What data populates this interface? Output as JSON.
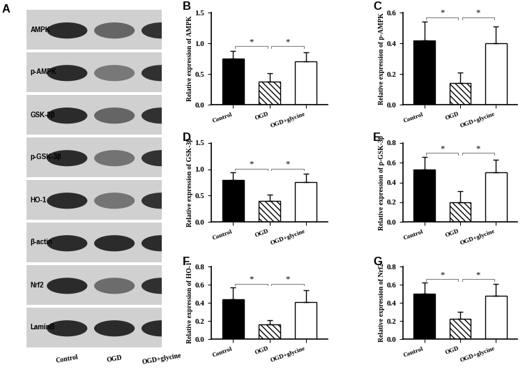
{
  "blot": {
    "label": "A",
    "rows": [
      "AMPK",
      "p-AMPK",
      "GSK-3β",
      "p-GSK-3β",
      "HO-1",
      "β-actin",
      "Nrf2",
      "LaminB"
    ],
    "lanes": [
      "Control",
      "OGD",
      "OGD+glycine"
    ]
  },
  "chart_data": [
    {
      "type": "bar",
      "label": "B",
      "ylabel": "Relative expression of AMPK",
      "categories": [
        "Control",
        "OGD",
        "OGD+glycine"
      ],
      "values": [
        0.75,
        0.37,
        0.7
      ],
      "errors": [
        0.13,
        0.14,
        0.15
      ],
      "colors": [
        "#000000",
        "#ffffff",
        "#ffffff"
      ],
      "ylim": [
        0,
        1.5
      ],
      "yticks": [
        {
          "value": 0,
          "label": "0.0"
        },
        {
          "value": 0.5,
          "label": "0.5"
        },
        {
          "value": 1,
          "label": "1.0"
        },
        {
          "value": 1.5,
          "label": "1.5"
        }
      ],
      "significance": [
        {
          "pair": [
            0,
            1
          ],
          "label": "*"
        },
        {
          "pair": [
            1,
            2
          ],
          "label": "*"
        }
      ]
    },
    {
      "type": "bar",
      "label": "C",
      "ylabel": "Relative expression of p-AMPK",
      "categories": [
        "Control",
        "OGD",
        "OGD+glycine"
      ],
      "values": [
        0.42,
        0.14,
        0.4
      ],
      "errors": [
        0.12,
        0.07,
        0.11
      ],
      "colors": [
        "#000000",
        "#ffffff",
        "#ffffff"
      ],
      "ylim": [
        0,
        0.6
      ],
      "yticks": [
        {
          "value": 0,
          "label": "0.0"
        },
        {
          "value": 0.2,
          "label": "0.2"
        },
        {
          "value": 0.4,
          "label": "0.4"
        },
        {
          "value": 0.6,
          "label": "0.6"
        }
      ],
      "significance": [
        {
          "pair": [
            0,
            1
          ],
          "label": "*"
        },
        {
          "pair": [
            1,
            2
          ],
          "label": "*"
        }
      ]
    },
    {
      "type": "bar",
      "label": "D",
      "ylabel": "Relative expression of GSK-3β",
      "categories": [
        "Control",
        "OGD",
        "OGD+glycine"
      ],
      "values": [
        0.8,
        0.4,
        0.76
      ],
      "errors": [
        0.14,
        0.12,
        0.15
      ],
      "colors": [
        "#000000",
        "#ffffff",
        "#ffffff"
      ],
      "ylim": [
        0,
        1.5
      ],
      "yticks": [
        {
          "value": 0,
          "label": "0.0"
        },
        {
          "value": 0.5,
          "label": "0.5"
        },
        {
          "value": 1,
          "label": "1.0"
        },
        {
          "value": 1.5,
          "label": "1.5"
        }
      ],
      "significance": [
        {
          "pair": [
            0,
            1
          ],
          "label": "*"
        },
        {
          "pair": [
            1,
            2
          ],
          "label": "*"
        }
      ]
    },
    {
      "type": "bar",
      "label": "E",
      "ylabel": "Relative expression of p-GSK-3β",
      "categories": [
        "Control",
        "OGD",
        "OGD+glycine"
      ],
      "values": [
        0.53,
        0.2,
        0.5
      ],
      "errors": [
        0.13,
        0.11,
        0.13
      ],
      "colors": [
        "#000000",
        "#ffffff",
        "#ffffff"
      ],
      "ylim": [
        0,
        0.8
      ],
      "yticks": [
        {
          "value": 0,
          "label": "0.0"
        },
        {
          "value": 0.2,
          "label": "0.2"
        },
        {
          "value": 0.4,
          "label": "0.4"
        },
        {
          "value": 0.6,
          "label": "0.6"
        },
        {
          "value": 0.8,
          "label": "0.8"
        }
      ],
      "significance": [
        {
          "pair": [
            0,
            1
          ],
          "label": "*"
        },
        {
          "pair": [
            1,
            2
          ],
          "label": "*"
        }
      ]
    },
    {
      "type": "bar",
      "label": "F",
      "ylabel": "Relative expression of HO-1",
      "categories": [
        "Control",
        "OGD",
        "OGD+glycine"
      ],
      "values": [
        0.44,
        0.16,
        0.41
      ],
      "errors": [
        0.13,
        0.05,
        0.13
      ],
      "colors": [
        "#000000",
        "#ffffff",
        "#ffffff"
      ],
      "ylim": [
        0,
        0.8
      ],
      "yticks": [
        {
          "value": 0,
          "label": "0.0"
        },
        {
          "value": 0.2,
          "label": "0.2"
        },
        {
          "value": 0.4,
          "label": "0.4"
        },
        {
          "value": 0.6,
          "label": "0.6"
        },
        {
          "value": 0.8,
          "label": "0.8"
        }
      ],
      "significance": [
        {
          "pair": [
            0,
            1
          ],
          "label": "*"
        },
        {
          "pair": [
            1,
            2
          ],
          "label": "*"
        }
      ]
    },
    {
      "type": "bar",
      "label": "G",
      "ylabel": "Relative expression of Nrf2",
      "categories": [
        "Control",
        "OGD",
        "OGD+glycine"
      ],
      "values": [
        0.5,
        0.22,
        0.48
      ],
      "errors": [
        0.12,
        0.08,
        0.13
      ],
      "colors": [
        "#000000",
        "#ffffff",
        "#ffffff"
      ],
      "ylim": [
        0,
        0.8
      ],
      "yticks": [
        {
          "value": 0,
          "label": "0.0"
        },
        {
          "value": 0.2,
          "label": "0.2"
        },
        {
          "value": 0.4,
          "label": "0.4"
        },
        {
          "value": 0.6,
          "label": "0.6"
        },
        {
          "value": 0.8,
          "label": "0.8"
        }
      ],
      "significance": [
        {
          "pair": [
            0,
            1
          ],
          "label": "*"
        },
        {
          "pair": [
            1,
            2
          ],
          "label": "*"
        }
      ]
    }
  ]
}
